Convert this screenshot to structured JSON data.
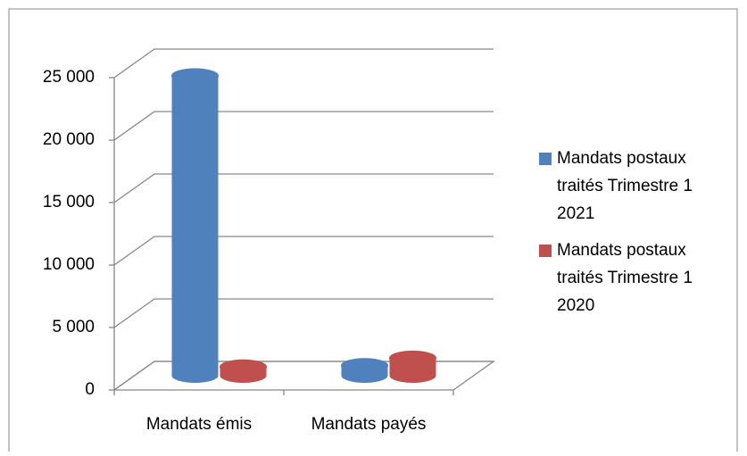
{
  "chart_data": {
    "type": "bar3d",
    "categories": [
      "Mandats émis",
      "Mandats payés"
    ],
    "series": [
      {
        "name": "Mandats postaux traités Trimestre 1 2021",
        "color": "#4f81bd",
        "values": [
          24000,
          800
        ]
      },
      {
        "name": "Mandats postaux traités Trimestre 1 2020",
        "color": "#c0504d",
        "values": [
          700,
          1400
        ]
      }
    ],
    "ylim": [
      0,
      25000
    ],
    "yticks": [
      0,
      {
        "value": 5000,
        "label": "5 000"
      },
      {
        "value": 10000,
        "label": "10 000"
      },
      {
        "value": 15000,
        "label": "15 000"
      },
      {
        "value": 20000,
        "label": "20 000"
      },
      {
        "value": 25000,
        "label": "25 000"
      }
    ],
    "grid": true,
    "legend": "right"
  }
}
